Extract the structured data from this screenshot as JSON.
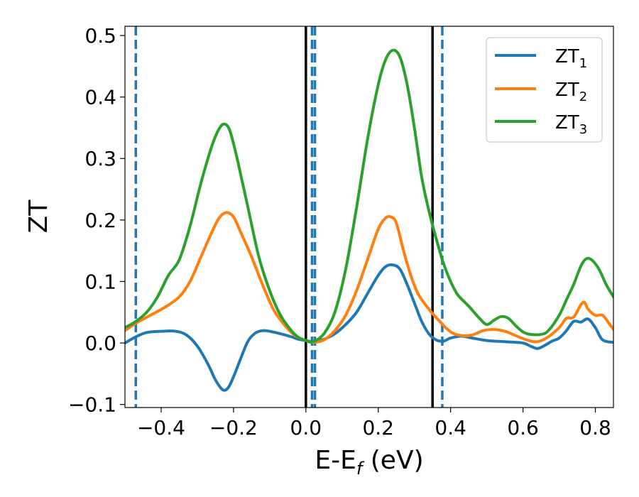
{
  "chart_data": {
    "type": "line",
    "xlabel": "E-E",
    "xlabel_sub": "f",
    "xlabel_unit": " (eV)",
    "ylabel": "ZT",
    "xlim": [
      -0.5,
      0.85
    ],
    "ylim": [
      -0.105,
      0.515
    ],
    "xticks": [
      -0.4,
      -0.2,
      0.0,
      0.2,
      0.4,
      0.6,
      0.8
    ],
    "xtick_labels": [
      "−0.4",
      "−0.2",
      "0.0",
      "0.2",
      "0.4",
      "0.6",
      "0.8"
    ],
    "yticks": [
      -0.1,
      0.0,
      0.1,
      0.2,
      0.3,
      0.4,
      0.5
    ],
    "ytick_labels": [
      "−0.1",
      "0.0",
      "0.1",
      "0.2",
      "0.3",
      "0.4",
      "0.5"
    ],
    "grid": false,
    "legend_position": "top-right",
    "vlines_solid": [
      0.0,
      0.35
    ],
    "vlines_dashed": [
      -0.47,
      0.017,
      0.025,
      0.377
    ],
    "vline_solid_color": "#000000",
    "vline_dashed_color": "#1f77b4",
    "series": [
      {
        "name": "ZT",
        "name_sub": "1",
        "color": "#1f77b4",
        "points": [
          [
            -0.5,
            0.0
          ],
          [
            -0.47,
            0.01
          ],
          [
            -0.44,
            0.017
          ],
          [
            -0.4,
            0.019
          ],
          [
            -0.36,
            0.019
          ],
          [
            -0.33,
            0.013
          ],
          [
            -0.3,
            -0.005
          ],
          [
            -0.27,
            -0.035
          ],
          [
            -0.25,
            -0.06
          ],
          [
            -0.23,
            -0.076
          ],
          [
            -0.215,
            -0.073
          ],
          [
            -0.2,
            -0.055
          ],
          [
            -0.18,
            -0.025
          ],
          [
            -0.16,
            0.003
          ],
          [
            -0.14,
            0.016
          ],
          [
            -0.12,
            0.02
          ],
          [
            -0.1,
            0.019
          ],
          [
            -0.07,
            0.015
          ],
          [
            -0.04,
            0.01
          ],
          [
            -0.02,
            0.006
          ],
          [
            0.0,
            0.004
          ],
          [
            0.02,
            0.002
          ],
          [
            0.05,
            0.006
          ],
          [
            0.08,
            0.015
          ],
          [
            0.11,
            0.03
          ],
          [
            0.14,
            0.05
          ],
          [
            0.17,
            0.08
          ],
          [
            0.2,
            0.11
          ],
          [
            0.22,
            0.124
          ],
          [
            0.24,
            0.127
          ],
          [
            0.26,
            0.12
          ],
          [
            0.28,
            0.095
          ],
          [
            0.3,
            0.065
          ],
          [
            0.32,
            0.035
          ],
          [
            0.34,
            0.015
          ],
          [
            0.36,
            0.005
          ],
          [
            0.38,
            0.003
          ],
          [
            0.4,
            0.008
          ],
          [
            0.43,
            0.011
          ],
          [
            0.46,
            0.008
          ],
          [
            0.5,
            0.004
          ],
          [
            0.55,
            0.002
          ],
          [
            0.6,
            0.0
          ],
          [
            0.62,
            -0.005
          ],
          [
            0.64,
            -0.009
          ],
          [
            0.66,
            -0.004
          ],
          [
            0.68,
            0.003
          ],
          [
            0.7,
            0.008
          ],
          [
            0.72,
            0.02
          ],
          [
            0.74,
            0.035
          ],
          [
            0.76,
            0.034
          ],
          [
            0.78,
            0.039
          ],
          [
            0.8,
            0.025
          ],
          [
            0.82,
            0.005
          ],
          [
            0.85,
            0.001
          ]
        ]
      },
      {
        "name": "ZT",
        "name_sub": "2",
        "color": "#ff7f0e",
        "points": [
          [
            -0.5,
            0.02
          ],
          [
            -0.47,
            0.032
          ],
          [
            -0.43,
            0.045
          ],
          [
            -0.39,
            0.058
          ],
          [
            -0.35,
            0.075
          ],
          [
            -0.32,
            0.1
          ],
          [
            -0.29,
            0.14
          ],
          [
            -0.26,
            0.18
          ],
          [
            -0.24,
            0.203
          ],
          [
            -0.22,
            0.212
          ],
          [
            -0.2,
            0.205
          ],
          [
            -0.18,
            0.18
          ],
          [
            -0.15,
            0.14
          ],
          [
            -0.12,
            0.095
          ],
          [
            -0.09,
            0.055
          ],
          [
            -0.06,
            0.03
          ],
          [
            -0.03,
            0.012
          ],
          [
            0.0,
            0.004
          ],
          [
            0.02,
            0.001
          ],
          [
            0.05,
            0.005
          ],
          [
            0.08,
            0.02
          ],
          [
            0.11,
            0.045
          ],
          [
            0.14,
            0.085
          ],
          [
            0.17,
            0.135
          ],
          [
            0.2,
            0.185
          ],
          [
            0.22,
            0.203
          ],
          [
            0.235,
            0.205
          ],
          [
            0.25,
            0.195
          ],
          [
            0.27,
            0.15
          ],
          [
            0.29,
            0.11
          ],
          [
            0.31,
            0.08
          ],
          [
            0.34,
            0.055
          ],
          [
            0.37,
            0.035
          ],
          [
            0.4,
            0.018
          ],
          [
            0.43,
            0.012
          ],
          [
            0.46,
            0.013
          ],
          [
            0.49,
            0.02
          ],
          [
            0.52,
            0.022
          ],
          [
            0.55,
            0.019
          ],
          [
            0.58,
            0.012
          ],
          [
            0.61,
            0.005
          ],
          [
            0.64,
            0.002
          ],
          [
            0.67,
            0.01
          ],
          [
            0.7,
            0.025
          ],
          [
            0.72,
            0.04
          ],
          [
            0.74,
            0.042
          ],
          [
            0.76,
            0.062
          ],
          [
            0.77,
            0.066
          ],
          [
            0.78,
            0.055
          ],
          [
            0.8,
            0.045
          ],
          [
            0.82,
            0.045
          ],
          [
            0.84,
            0.03
          ],
          [
            0.85,
            0.022
          ]
        ]
      },
      {
        "name": "ZT",
        "name_sub": "3",
        "color": "#2ca02c",
        "points": [
          [
            -0.5,
            0.025
          ],
          [
            -0.47,
            0.035
          ],
          [
            -0.44,
            0.05
          ],
          [
            -0.41,
            0.075
          ],
          [
            -0.38,
            0.11
          ],
          [
            -0.35,
            0.135
          ],
          [
            -0.32,
            0.19
          ],
          [
            -0.29,
            0.26
          ],
          [
            -0.26,
            0.32
          ],
          [
            -0.24,
            0.348
          ],
          [
            -0.225,
            0.356
          ],
          [
            -0.21,
            0.345
          ],
          [
            -0.19,
            0.3
          ],
          [
            -0.16,
            0.22
          ],
          [
            -0.13,
            0.14
          ],
          [
            -0.1,
            0.085
          ],
          [
            -0.07,
            0.045
          ],
          [
            -0.04,
            0.02
          ],
          [
            -0.02,
            0.009
          ],
          [
            0.0,
            0.004
          ],
          [
            0.02,
            0.002
          ],
          [
            0.05,
            0.015
          ],
          [
            0.08,
            0.05
          ],
          [
            0.11,
            0.12
          ],
          [
            0.14,
            0.22
          ],
          [
            0.17,
            0.33
          ],
          [
            0.2,
            0.42
          ],
          [
            0.22,
            0.46
          ],
          [
            0.24,
            0.476
          ],
          [
            0.26,
            0.465
          ],
          [
            0.28,
            0.42
          ],
          [
            0.3,
            0.35
          ],
          [
            0.32,
            0.27
          ],
          [
            0.34,
            0.215
          ],
          [
            0.36,
            0.17
          ],
          [
            0.38,
            0.13
          ],
          [
            0.4,
            0.1
          ],
          [
            0.42,
            0.078
          ],
          [
            0.45,
            0.06
          ],
          [
            0.48,
            0.04
          ],
          [
            0.5,
            0.03
          ],
          [
            0.52,
            0.037
          ],
          [
            0.54,
            0.043
          ],
          [
            0.56,
            0.04
          ],
          [
            0.58,
            0.028
          ],
          [
            0.6,
            0.018
          ],
          [
            0.62,
            0.014
          ],
          [
            0.65,
            0.014
          ],
          [
            0.67,
            0.02
          ],
          [
            0.7,
            0.045
          ],
          [
            0.72,
            0.07
          ],
          [
            0.74,
            0.095
          ],
          [
            0.76,
            0.125
          ],
          [
            0.775,
            0.137
          ],
          [
            0.79,
            0.135
          ],
          [
            0.81,
            0.12
          ],
          [
            0.83,
            0.095
          ],
          [
            0.85,
            0.075
          ]
        ]
      }
    ]
  }
}
